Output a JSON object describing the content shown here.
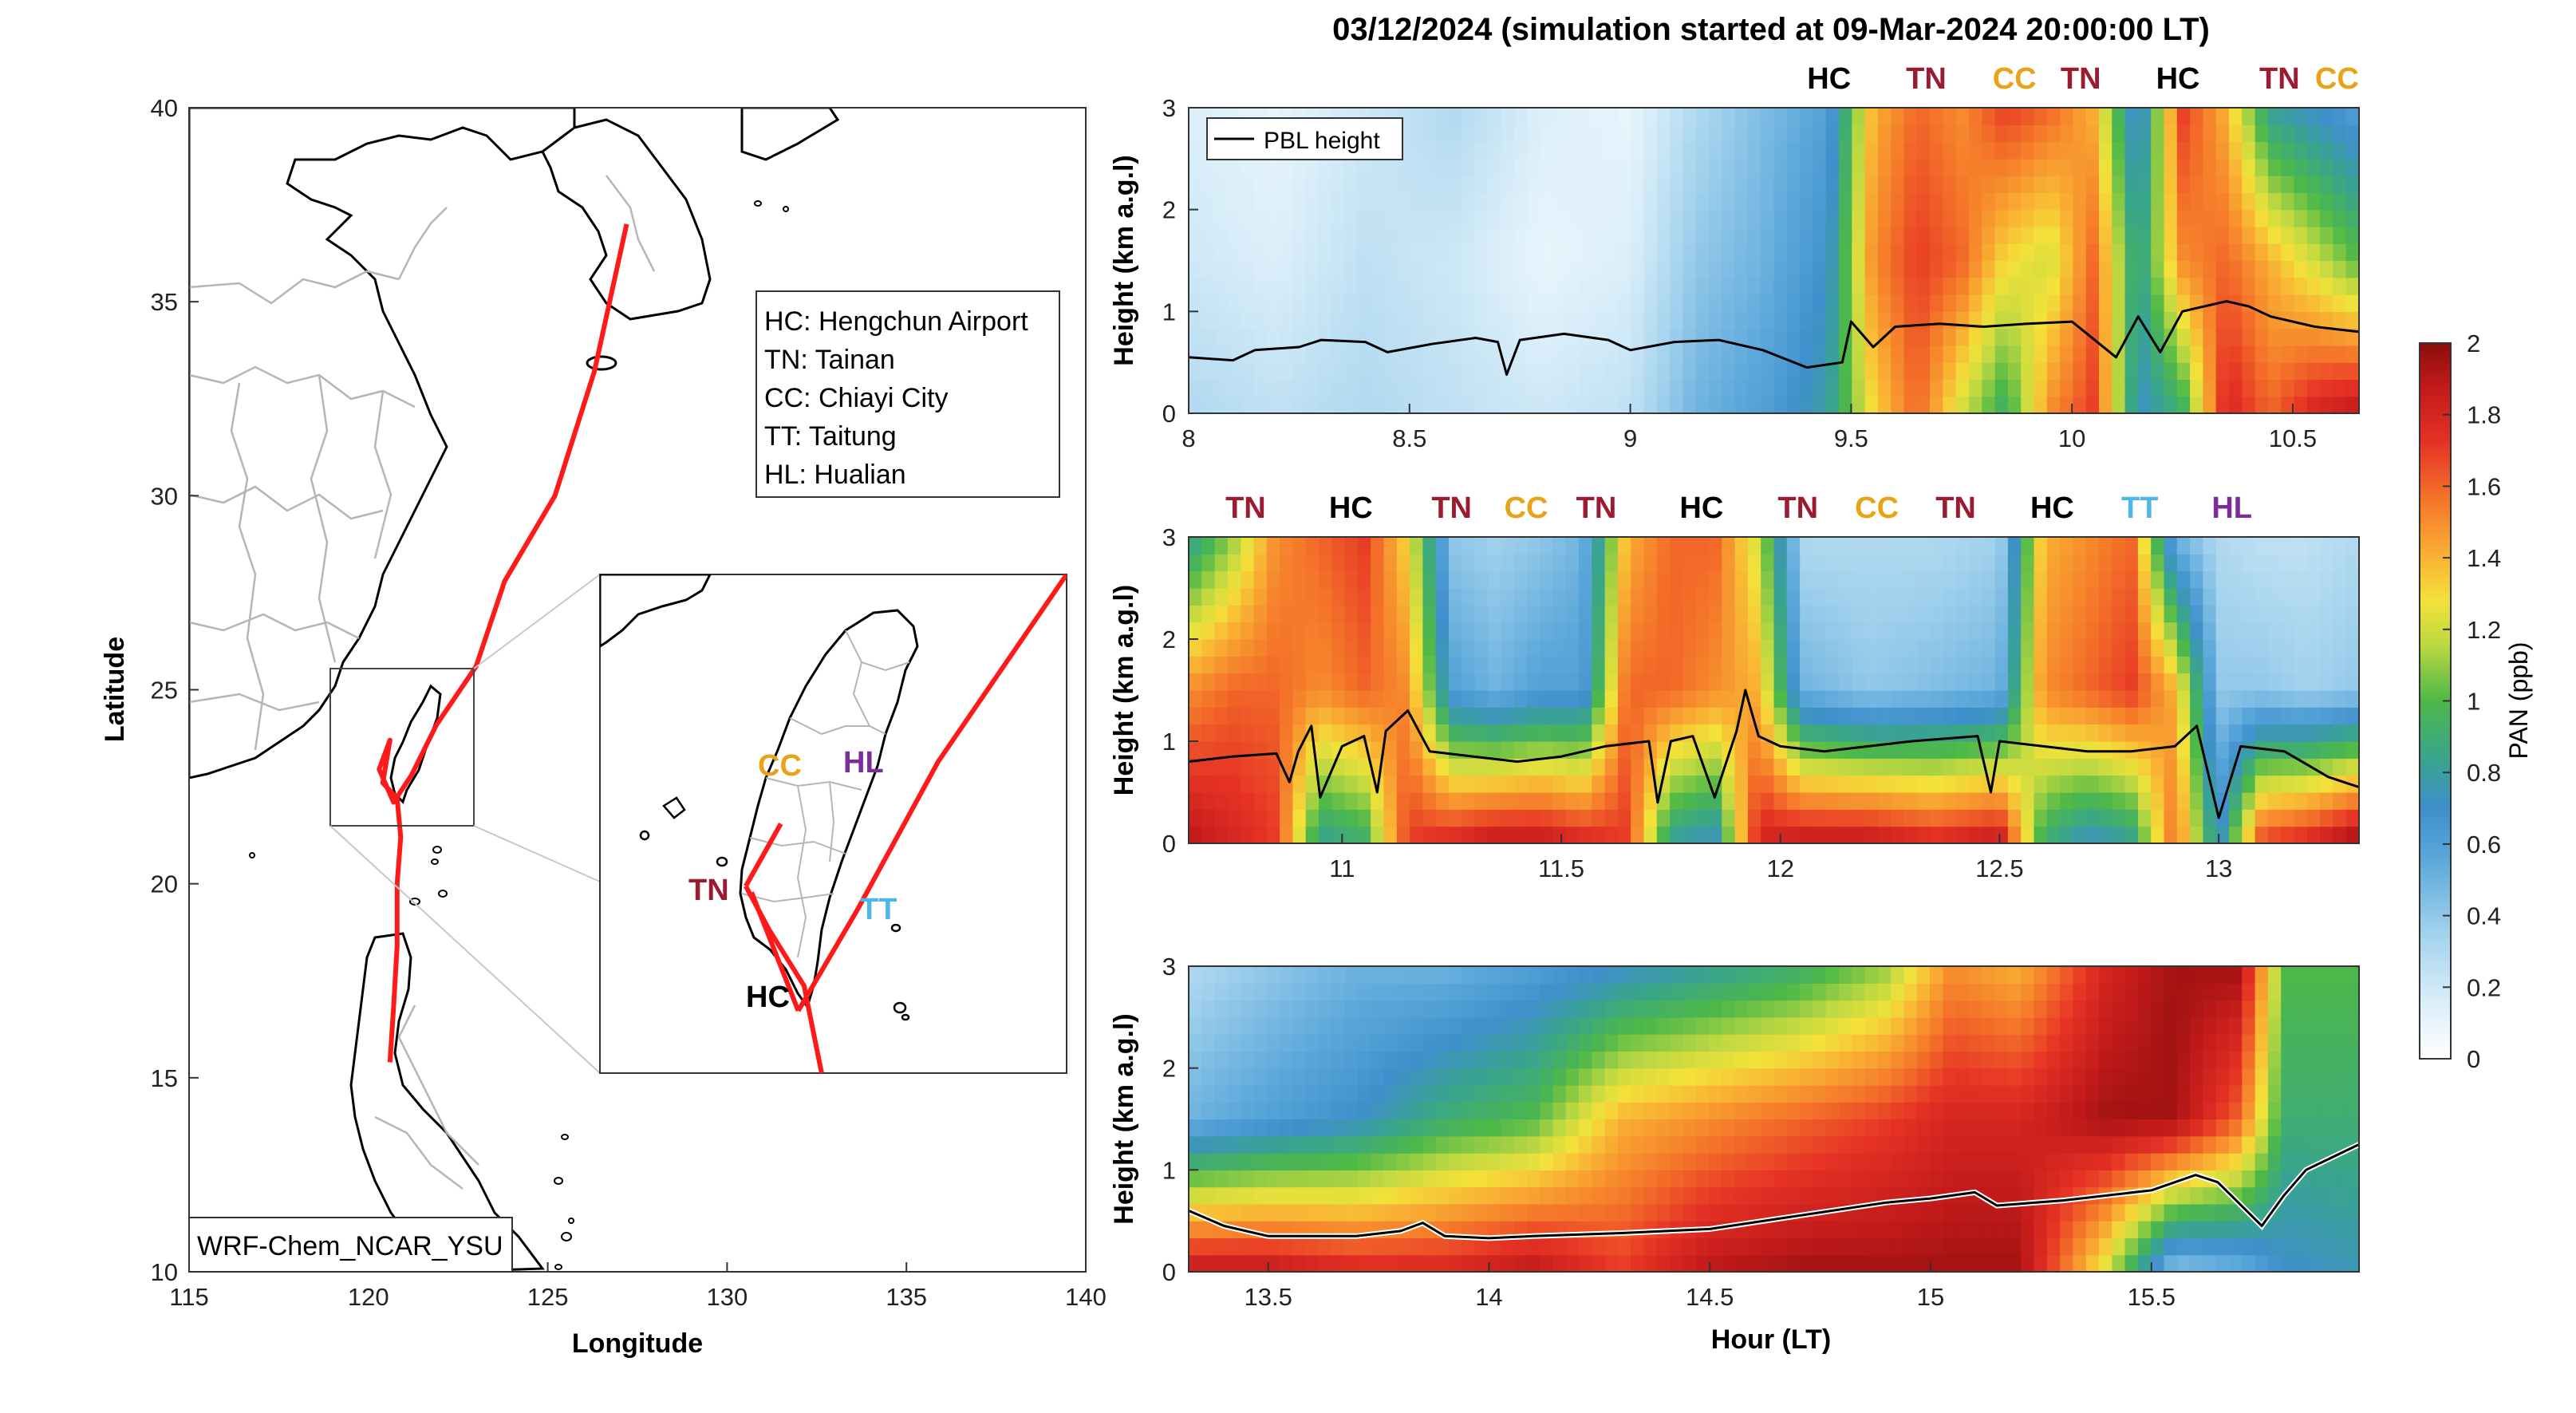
{
  "title": "03/12/2024 (simulation started at 09-Mar-2024 20:00:00 LT)",
  "colors": {
    "HC": "#000000",
    "TN": "#9b1b30",
    "CC": "#e8a317",
    "TT": "#4db8e8",
    "HL": "#7b2d9a",
    "track": "#ff1a1a",
    "coast": "#000000",
    "border": "#b5b5b5"
  },
  "map": {
    "xlabel": "Longitude",
    "ylabel": "Latitude",
    "xlim": [
      115,
      140
    ],
    "ylim": [
      10,
      40
    ],
    "xticks": [
      "115",
      "120",
      "125",
      "130",
      "135",
      "140"
    ],
    "yticks": [
      "10",
      "15",
      "20",
      "25",
      "30",
      "35",
      "40"
    ],
    "model_label": "WRF-Chem_NCAR_YSU",
    "legend": [
      "HC: Hengchun Airport",
      "TN: Tainan",
      "CC: Chiayi City",
      "TT: Taitung",
      "HL: Hualian"
    ],
    "inset_labels": [
      "CC",
      "HL",
      "TN",
      "TT",
      "HC"
    ],
    "inset_extent": {
      "lon": [
        119,
        123
      ],
      "lat": [
        21.5,
        25.5
      ]
    },
    "track": [
      [
        127.2,
        37.0
      ],
      [
        126.3,
        33.2
      ],
      [
        125.2,
        30.0
      ],
      [
        123.8,
        27.8
      ],
      [
        123.0,
        25.6
      ],
      [
        121.9,
        24.1
      ],
      [
        121.2,
        22.8
      ],
      [
        120.7,
        22.1
      ],
      [
        120.3,
        22.95
      ],
      [
        120.6,
        23.7
      ],
      [
        120.4,
        22.6
      ],
      [
        120.8,
        22.2
      ],
      [
        120.9,
        21.2
      ],
      [
        120.8,
        20.0
      ],
      [
        120.8,
        18.4
      ],
      [
        120.7,
        16.8
      ],
      [
        120.6,
        15.4
      ]
    ],
    "inset_track_segments": [
      [
        [
          120.25,
          23.0
        ],
        [
          120.45,
          22.65
        ],
        [
          120.75,
          22.2
        ],
        [
          120.9,
          21.5
        ]
      ],
      [
        [
          120.25,
          23.0
        ],
        [
          120.55,
          23.5
        ]
      ],
      [
        [
          120.3,
          22.95
        ],
        [
          120.7,
          22.0
        ]
      ],
      [
        [
          120.7,
          22.0
        ],
        [
          121.2,
          22.8
        ],
        [
          121.9,
          24.0
        ],
        [
          123.0,
          25.5
        ]
      ]
    ]
  },
  "colorbar": {
    "label": "PAN (ppb)",
    "ticks": [
      "0",
      "0.2",
      "0.4",
      "0.6",
      "0.8",
      "1",
      "1.2",
      "1.4",
      "1.6",
      "1.8",
      "2"
    ],
    "range": [
      0,
      2
    ]
  },
  "chart_data": [
    {
      "type": "heatmap",
      "xlabel": "",
      "ylabel": "Height (km a.g.l)",
      "xlim": [
        8,
        10.65
      ],
      "ylim": [
        0,
        3
      ],
      "xticks": [
        "8",
        "8.5",
        "9",
        "9.5",
        "10",
        "10.5"
      ],
      "yticks": [
        "0",
        "1",
        "2",
        "3"
      ],
      "legend": "PBL height",
      "legend_position": "top-left",
      "site_labels": [
        {
          "t": 9.45,
          "text": "HC"
        },
        {
          "t": 9.67,
          "text": "TN"
        },
        {
          "t": 9.87,
          "text": "CC"
        },
        {
          "t": 10.02,
          "text": "TN"
        },
        {
          "t": 10.24,
          "text": "HC"
        },
        {
          "t": 10.47,
          "text": "TN"
        },
        {
          "t": 10.6,
          "text": "CC"
        }
      ],
      "pan_profiles": [
        {
          "t": 8.0,
          "v": [
            0.3,
            0.2,
            0.15
          ]
        },
        {
          "t": 8.2,
          "v": [
            0.25,
            0.15,
            0.1
          ]
        },
        {
          "t": 8.4,
          "v": [
            0.3,
            0.25,
            0.2
          ]
        },
        {
          "t": 8.6,
          "v": [
            0.25,
            0.2,
            0.3
          ]
        },
        {
          "t": 8.8,
          "v": [
            0.2,
            0.1,
            0.15
          ]
        },
        {
          "t": 9.0,
          "v": [
            0.25,
            0.15,
            0.1
          ]
        },
        {
          "t": 9.15,
          "v": [
            0.5,
            0.4,
            0.3
          ]
        },
        {
          "t": 9.3,
          "v": [
            0.6,
            0.5,
            0.45
          ]
        },
        {
          "t": 9.45,
          "v": [
            0.8,
            0.7,
            0.6
          ]
        },
        {
          "t": 9.55,
          "v": [
            1.3,
            1.5,
            1.4
          ]
        },
        {
          "t": 9.65,
          "v": [
            1.6,
            1.7,
            1.6
          ]
        },
        {
          "t": 9.75,
          "v": [
            1.2,
            1.6,
            1.5
          ]
        },
        {
          "t": 9.85,
          "v": [
            0.9,
            1.3,
            1.7
          ]
        },
        {
          "t": 9.95,
          "v": [
            1.5,
            1.2,
            1.6
          ]
        },
        {
          "t": 10.05,
          "v": [
            1.7,
            1.6,
            1.4
          ]
        },
        {
          "t": 10.15,
          "v": [
            0.7,
            0.8,
            0.6
          ]
        },
        {
          "t": 10.25,
          "v": [
            0.9,
            1.5,
            1.7
          ]
        },
        {
          "t": 10.35,
          "v": [
            1.8,
            1.6,
            1.4
          ]
        },
        {
          "t": 10.45,
          "v": [
            1.6,
            1.4,
            0.8
          ]
        },
        {
          "t": 10.55,
          "v": [
            1.8,
            1.2,
            0.7
          ]
        },
        {
          "t": 10.65,
          "v": [
            1.9,
            1.0,
            0.6
          ]
        }
      ],
      "pbl_height": [
        [
          8.0,
          0.55
        ],
        [
          8.1,
          0.52
        ],
        [
          8.15,
          0.62
        ],
        [
          8.25,
          0.65
        ],
        [
          8.3,
          0.72
        ],
        [
          8.4,
          0.7
        ],
        [
          8.45,
          0.6
        ],
        [
          8.55,
          0.68
        ],
        [
          8.65,
          0.74
        ],
        [
          8.7,
          0.7
        ],
        [
          8.72,
          0.38
        ],
        [
          8.75,
          0.72
        ],
        [
          8.85,
          0.78
        ],
        [
          8.95,
          0.72
        ],
        [
          9.0,
          0.62
        ],
        [
          9.1,
          0.7
        ],
        [
          9.2,
          0.72
        ],
        [
          9.3,
          0.62
        ],
        [
          9.4,
          0.45
        ],
        [
          9.48,
          0.5
        ],
        [
          9.5,
          0.9
        ],
        [
          9.55,
          0.65
        ],
        [
          9.6,
          0.85
        ],
        [
          9.7,
          0.88
        ],
        [
          9.8,
          0.85
        ],
        [
          9.9,
          0.88
        ],
        [
          10.0,
          0.9
        ],
        [
          10.1,
          0.55
        ],
        [
          10.15,
          0.95
        ],
        [
          10.2,
          0.6
        ],
        [
          10.25,
          1.0
        ],
        [
          10.3,
          1.05
        ],
        [
          10.35,
          1.1
        ],
        [
          10.4,
          1.05
        ],
        [
          10.45,
          0.95
        ],
        [
          10.55,
          0.85
        ],
        [
          10.65,
          0.8
        ]
      ]
    },
    {
      "type": "heatmap",
      "xlabel": "",
      "ylabel": "Height (km a.g.l)",
      "xlim": [
        10.65,
        13.32
      ],
      "ylim": [
        0,
        3
      ],
      "xticks": [
        "11",
        "11.5",
        "12",
        "12.5",
        "13"
      ],
      "yticks": [
        "0",
        "1",
        "2",
        "3"
      ],
      "site_labels": [
        {
          "t": 10.78,
          "text": "TN"
        },
        {
          "t": 11.02,
          "text": "HC"
        },
        {
          "t": 11.25,
          "text": "TN"
        },
        {
          "t": 11.42,
          "text": "CC"
        },
        {
          "t": 11.58,
          "text": "TN"
        },
        {
          "t": 11.82,
          "text": "HC"
        },
        {
          "t": 12.04,
          "text": "TN"
        },
        {
          "t": 12.22,
          "text": "CC"
        },
        {
          "t": 12.4,
          "text": "TN"
        },
        {
          "t": 12.62,
          "text": "HC"
        },
        {
          "t": 12.82,
          "text": "TT"
        },
        {
          "t": 13.03,
          "text": "HL"
        }
      ],
      "pan_profiles": [
        {
          "t": 10.65,
          "v": [
            1.9,
            1.5,
            0.8
          ]
        },
        {
          "t": 10.75,
          "v": [
            1.8,
            1.6,
            1.1
          ]
        },
        {
          "t": 10.85,
          "v": [
            1.7,
            1.6,
            1.5
          ]
        },
        {
          "t": 10.95,
          "v": [
            0.8,
            1.5,
            1.6
          ]
        },
        {
          "t": 11.05,
          "v": [
            0.9,
            1.6,
            1.7
          ]
        },
        {
          "t": 11.15,
          "v": [
            1.7,
            1.5,
            1.3
          ]
        },
        {
          "t": 11.25,
          "v": [
            1.8,
            0.6,
            0.4
          ]
        },
        {
          "t": 11.35,
          "v": [
            1.9,
            0.5,
            0.35
          ]
        },
        {
          "t": 11.45,
          "v": [
            1.9,
            0.6,
            0.4
          ]
        },
        {
          "t": 11.55,
          "v": [
            1.8,
            0.6,
            0.5
          ]
        },
        {
          "t": 11.65,
          "v": [
            1.7,
            1.6,
            1.4
          ]
        },
        {
          "t": 11.75,
          "v": [
            0.8,
            1.6,
            1.6
          ]
        },
        {
          "t": 11.85,
          "v": [
            0.7,
            1.5,
            1.6
          ]
        },
        {
          "t": 11.95,
          "v": [
            1.8,
            1.4,
            1.2
          ]
        },
        {
          "t": 12.05,
          "v": [
            1.9,
            0.5,
            0.3
          ]
        },
        {
          "t": 12.2,
          "v": [
            1.9,
            0.4,
            0.3
          ]
        },
        {
          "t": 12.35,
          "v": [
            1.8,
            0.45,
            0.3
          ]
        },
        {
          "t": 12.5,
          "v": [
            1.9,
            0.5,
            0.35
          ]
        },
        {
          "t": 12.6,
          "v": [
            0.9,
            1.5,
            1.4
          ]
        },
        {
          "t": 12.7,
          "v": [
            0.7,
            1.6,
            1.5
          ]
        },
        {
          "t": 12.8,
          "v": [
            0.8,
            1.7,
            1.6
          ]
        },
        {
          "t": 12.9,
          "v": [
            1.6,
            1.4,
            0.5
          ]
        },
        {
          "t": 13.0,
          "v": [
            0.7,
            0.4,
            0.3
          ]
        },
        {
          "t": 13.1,
          "v": [
            1.7,
            0.4,
            0.25
          ]
        },
        {
          "t": 13.2,
          "v": [
            1.8,
            0.35,
            0.25
          ]
        },
        {
          "t": 13.32,
          "v": [
            2.0,
            0.4,
            0.3
          ]
        }
      ],
      "pbl_height": [
        [
          10.65,
          0.8
        ],
        [
          10.75,
          0.85
        ],
        [
          10.85,
          0.88
        ],
        [
          10.88,
          0.6
        ],
        [
          10.9,
          0.9
        ],
        [
          10.93,
          1.15
        ],
        [
          10.95,
          0.45
        ],
        [
          11.0,
          0.95
        ],
        [
          11.05,
          1.05
        ],
        [
          11.08,
          0.5
        ],
        [
          11.1,
          1.1
        ],
        [
          11.15,
          1.3
        ],
        [
          11.2,
          0.9
        ],
        [
          11.3,
          0.85
        ],
        [
          11.4,
          0.8
        ],
        [
          11.5,
          0.85
        ],
        [
          11.6,
          0.95
        ],
        [
          11.7,
          1.0
        ],
        [
          11.72,
          0.4
        ],
        [
          11.75,
          1.0
        ],
        [
          11.8,
          1.05
        ],
        [
          11.85,
          0.45
        ],
        [
          11.9,
          1.1
        ],
        [
          11.92,
          1.5
        ],
        [
          11.95,
          1.05
        ],
        [
          12.0,
          0.95
        ],
        [
          12.1,
          0.9
        ],
        [
          12.2,
          0.95
        ],
        [
          12.3,
          1.0
        ],
        [
          12.45,
          1.05
        ],
        [
          12.48,
          0.5
        ],
        [
          12.5,
          1.0
        ],
        [
          12.6,
          0.95
        ],
        [
          12.7,
          0.9
        ],
        [
          12.8,
          0.9
        ],
        [
          12.9,
          0.95
        ],
        [
          12.95,
          1.15
        ],
        [
          13.0,
          0.25
        ],
        [
          13.05,
          0.95
        ],
        [
          13.15,
          0.9
        ],
        [
          13.25,
          0.65
        ],
        [
          13.32,
          0.55
        ]
      ]
    },
    {
      "type": "heatmap",
      "xlabel": "Hour (LT)",
      "ylabel": "Height (km a.g.l)",
      "xlim": [
        13.32,
        15.97
      ],
      "ylim": [
        0,
        3
      ],
      "xticks": [
        "13.5",
        "14",
        "14.5",
        "15",
        "15.5"
      ],
      "yticks": [
        "0",
        "1",
        "2",
        "3"
      ],
      "pan_profiles": [
        {
          "t": 13.32,
          "v": [
            1.9,
            0.5,
            0.3
          ]
        },
        {
          "t": 13.5,
          "v": [
            1.9,
            0.6,
            0.4
          ]
        },
        {
          "t": 13.7,
          "v": [
            1.8,
            0.7,
            0.5
          ]
        },
        {
          "t": 13.9,
          "v": [
            1.8,
            0.9,
            0.5
          ]
        },
        {
          "t": 14.1,
          "v": [
            1.9,
            1.0,
            0.6
          ]
        },
        {
          "t": 14.3,
          "v": [
            1.7,
            1.4,
            0.7
          ]
        },
        {
          "t": 14.5,
          "v": [
            1.9,
            1.5,
            0.8
          ]
        },
        {
          "t": 14.7,
          "v": [
            1.95,
            1.6,
            0.9
          ]
        },
        {
          "t": 14.9,
          "v": [
            1.95,
            1.7,
            1.1
          ]
        },
        {
          "t": 15.05,
          "v": [
            1.95,
            1.8,
            1.5
          ]
        },
        {
          "t": 15.2,
          "v": [
            1.95,
            1.8,
            1.4
          ]
        },
        {
          "t": 15.4,
          "v": [
            1.2,
            1.95,
            1.8
          ]
        },
        {
          "t": 15.55,
          "v": [
            0.4,
            1.95,
            1.95
          ]
        },
        {
          "t": 15.7,
          "v": [
            0.5,
            1.6,
            1.95
          ]
        },
        {
          "t": 15.8,
          "v": [
            0.7,
            0.9,
            1.0
          ]
        },
        {
          "t": 15.97,
          "v": [
            0.75,
            0.9,
            1.0
          ]
        }
      ],
      "pbl_height": [
        [
          13.32,
          0.6
        ],
        [
          13.4,
          0.45
        ],
        [
          13.5,
          0.35
        ],
        [
          13.7,
          0.35
        ],
        [
          13.8,
          0.4
        ],
        [
          13.85,
          0.48
        ],
        [
          13.9,
          0.35
        ],
        [
          14.0,
          0.33
        ],
        [
          14.1,
          0.35
        ],
        [
          14.3,
          0.38
        ],
        [
          14.5,
          0.42
        ],
        [
          14.7,
          0.55
        ],
        [
          14.9,
          0.68
        ],
        [
          15.0,
          0.72
        ],
        [
          15.1,
          0.78
        ],
        [
          15.15,
          0.65
        ],
        [
          15.3,
          0.7
        ],
        [
          15.5,
          0.8
        ],
        [
          15.6,
          0.95
        ],
        [
          15.65,
          0.88
        ],
        [
          15.75,
          0.45
        ],
        [
          15.8,
          0.75
        ],
        [
          15.85,
          1.0
        ],
        [
          15.97,
          1.25
        ]
      ]
    }
  ]
}
